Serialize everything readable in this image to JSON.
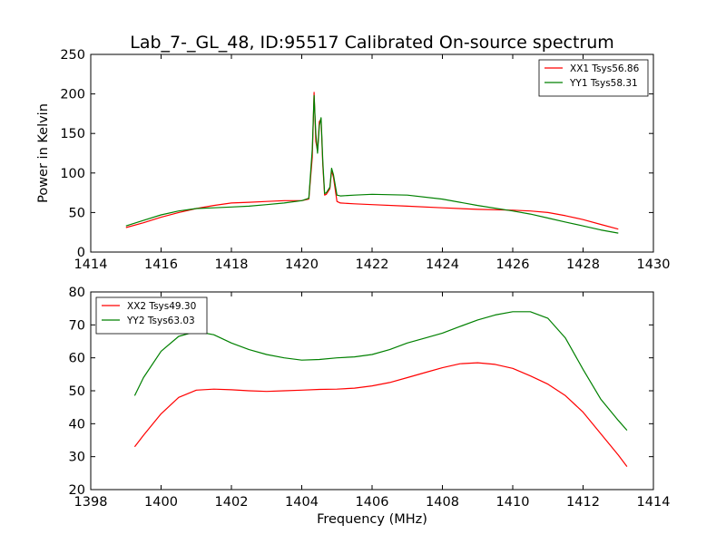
{
  "chart_data": [
    {
      "type": "line",
      "title": "Lab_7-_GL_48, ID:95517 Calibrated On-source spectrum",
      "xlabel": "",
      "ylabel": "Power in Kelvin",
      "xlim": [
        1414,
        1430
      ],
      "ylim": [
        0,
        250
      ],
      "xticks": [
        1414,
        1416,
        1418,
        1420,
        1422,
        1424,
        1426,
        1428,
        1430
      ],
      "yticks": [
        0,
        50,
        100,
        150,
        200,
        250
      ],
      "grid": false,
      "legend_position": "top-right",
      "series": [
        {
          "name": "XX1 Tsys56.86",
          "color": "#ff0000",
          "x": [
            1415.0,
            1415.5,
            1416.0,
            1416.5,
            1417.0,
            1417.5,
            1418.0,
            1418.5,
            1419.0,
            1419.5,
            1420.0,
            1420.2,
            1420.3,
            1420.35,
            1420.4,
            1420.45,
            1420.5,
            1420.55,
            1420.6,
            1420.65,
            1420.7,
            1420.8,
            1420.85,
            1420.9,
            1421.0,
            1421.1,
            1421.5,
            1422.0,
            1423.0,
            1424.0,
            1425.0,
            1426.0,
            1426.5,
            1427.0,
            1427.5,
            1428.0,
            1428.5,
            1429.0
          ],
          "y": [
            31,
            37,
            44,
            50,
            55,
            59,
            62,
            63,
            64,
            65,
            65,
            67,
            120,
            202,
            140,
            128,
            165,
            168,
            110,
            72,
            73,
            80,
            103,
            95,
            64,
            62,
            61,
            60,
            58,
            56,
            54,
            53,
            52,
            50,
            46,
            41,
            35,
            29
          ]
        },
        {
          "name": "YY1 Tsys58.31",
          "color": "#008000",
          "x": [
            1415.0,
            1415.5,
            1416.0,
            1416.5,
            1417.0,
            1417.5,
            1418.0,
            1418.5,
            1419.0,
            1419.5,
            1420.0,
            1420.2,
            1420.3,
            1420.35,
            1420.4,
            1420.45,
            1420.5,
            1420.55,
            1420.6,
            1420.65,
            1420.7,
            1420.8,
            1420.85,
            1420.9,
            1421.0,
            1421.1,
            1421.5,
            1422.0,
            1423.0,
            1424.0,
            1425.0,
            1426.0,
            1426.5,
            1427.0,
            1427.5,
            1428.0,
            1428.5,
            1429.0
          ],
          "y": [
            33,
            40,
            47,
            52,
            55,
            56,
            57,
            58,
            60,
            62,
            65,
            68,
            130,
            198,
            150,
            125,
            160,
            170,
            115,
            74,
            75,
            82,
            106,
            98,
            72,
            71,
            72,
            73,
            72,
            67,
            59,
            52,
            48,
            43,
            38,
            33,
            28,
            24
          ]
        }
      ]
    },
    {
      "type": "line",
      "title": "",
      "xlabel": "Frequency (MHz)",
      "ylabel": "",
      "xlim": [
        1398,
        1414
      ],
      "ylim": [
        20,
        80
      ],
      "xticks": [
        1398,
        1400,
        1402,
        1404,
        1406,
        1408,
        1410,
        1412,
        1414
      ],
      "yticks": [
        20,
        30,
        40,
        50,
        60,
        70,
        80
      ],
      "grid": false,
      "legend_position": "top-left",
      "series": [
        {
          "name": "XX2 Tsys49.30",
          "color": "#ff0000",
          "x": [
            1399.25,
            1399.5,
            1400.0,
            1400.5,
            1401.0,
            1401.5,
            1402.0,
            1402.5,
            1403.0,
            1403.5,
            1404.0,
            1404.5,
            1405.0,
            1405.5,
            1406.0,
            1406.5,
            1407.0,
            1407.5,
            1408.0,
            1408.5,
            1409.0,
            1409.5,
            1410.0,
            1410.5,
            1411.0,
            1411.5,
            1412.0,
            1412.5,
            1413.0,
            1413.25
          ],
          "y": [
            33,
            36.5,
            43,
            48,
            50.2,
            50.5,
            50.3,
            50,
            49.8,
            50,
            50.2,
            50.4,
            50.5,
            50.8,
            51.5,
            52.5,
            54,
            55.5,
            57,
            58.2,
            58.5,
            58,
            56.8,
            54.5,
            52,
            48.5,
            43.5,
            37,
            30.5,
            27
          ]
        },
        {
          "name": "YY2 Tsys63.03",
          "color": "#008000",
          "x": [
            1399.25,
            1399.5,
            1400.0,
            1400.5,
            1401.0,
            1401.5,
            1402.0,
            1402.5,
            1403.0,
            1403.5,
            1404.0,
            1404.5,
            1405.0,
            1405.5,
            1406.0,
            1406.5,
            1407.0,
            1407.5,
            1408.0,
            1408.5,
            1409.0,
            1409.5,
            1410.0,
            1410.5,
            1411.0,
            1411.5,
            1412.0,
            1412.5,
            1413.0,
            1413.25
          ],
          "y": [
            48.5,
            54,
            62,
            66.5,
            68,
            67,
            64.5,
            62.5,
            61,
            60,
            59.3,
            59.5,
            60,
            60.3,
            61,
            62.5,
            64.5,
            66,
            67.5,
            69.5,
            71.5,
            73,
            74,
            74,
            72,
            66,
            56.5,
            47.5,
            41,
            38
          ]
        }
      ]
    }
  ]
}
